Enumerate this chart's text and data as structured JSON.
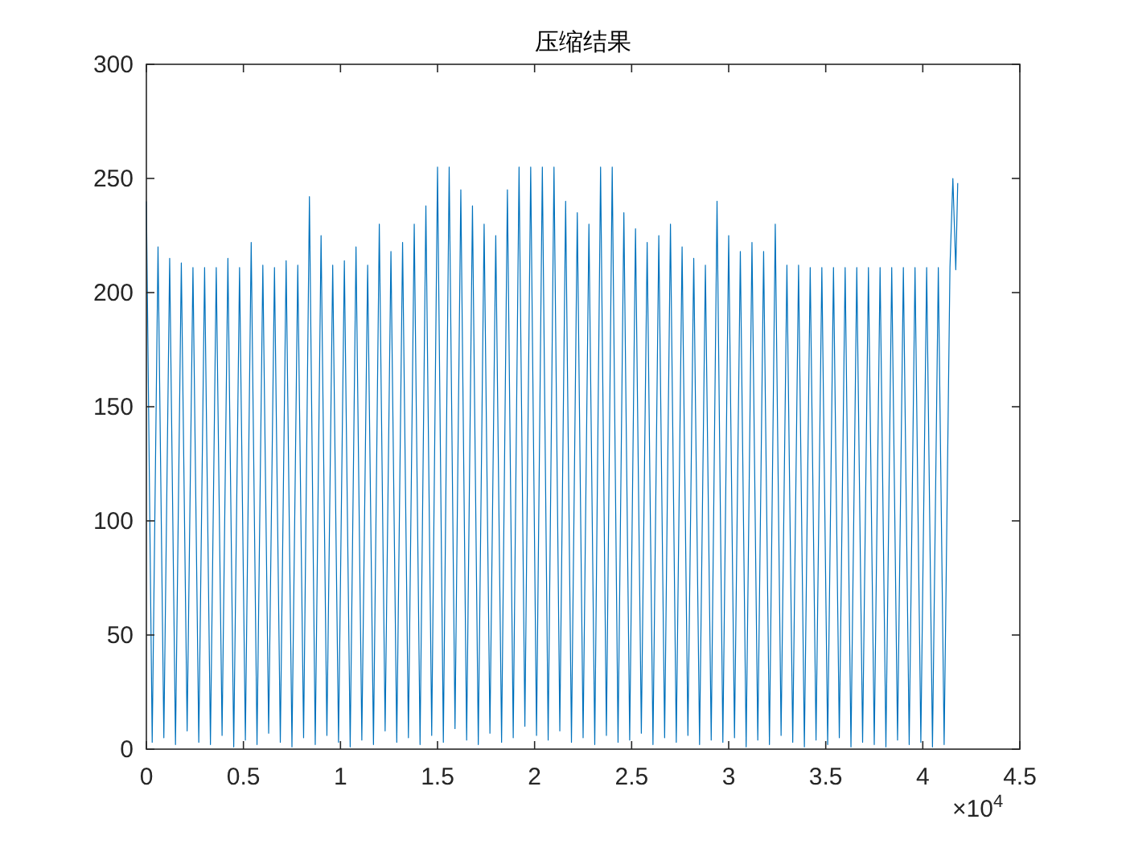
{
  "chart_data": {
    "type": "line",
    "title": "压缩结果",
    "series": [
      {
        "color": "#0072bd",
        "x": [
          0,
          0.03,
          0.06,
          0.09,
          0.12,
          0.15,
          0.18,
          0.21,
          0.24,
          0.27,
          0.3,
          0.33,
          0.36,
          0.39,
          0.42,
          0.45,
          0.48,
          0.51,
          0.54,
          0.57,
          0.6,
          0.63,
          0.66,
          0.69,
          0.72,
          0.75,
          0.78,
          0.81,
          0.84,
          0.87,
          0.9,
          0.93,
          0.96,
          0.99,
          1.02,
          1.05,
          1.08,
          1.11,
          1.14,
          1.17,
          1.2,
          1.23,
          1.26,
          1.29,
          1.32,
          1.35,
          1.38,
          1.41,
          1.44,
          1.47,
          1.5,
          1.53,
          1.56,
          1.59,
          1.62,
          1.65,
          1.68,
          1.71,
          1.74,
          1.77,
          1.8,
          1.83,
          1.86,
          1.89,
          1.92,
          1.95,
          1.98,
          2.01,
          2.04,
          2.07,
          2.1,
          2.13,
          2.16,
          2.19,
          2.22,
          2.25,
          2.28,
          2.31,
          2.34,
          2.37,
          2.4,
          2.43,
          2.46,
          2.49,
          2.52,
          2.55,
          2.58,
          2.61,
          2.64,
          2.67,
          2.7,
          2.73,
          2.76,
          2.79,
          2.82,
          2.85,
          2.88,
          2.91,
          2.94,
          2.97,
          3,
          3.03,
          3.06,
          3.09,
          3.12,
          3.15,
          3.18,
          3.21,
          3.24,
          3.27,
          3.3,
          3.33,
          3.36,
          3.39,
          3.42,
          3.45,
          3.48,
          3.51,
          3.54,
          3.57,
          3.6,
          3.63,
          3.66,
          3.69,
          3.72,
          3.75,
          3.78,
          3.81,
          3.84,
          3.87,
          3.9,
          3.93,
          3.96,
          3.99,
          4.02,
          4.05,
          4.08,
          4.11,
          4.14,
          4.155,
          4.17,
          4.18
        ],
        "values": [
          240,
          3,
          220,
          5,
          215,
          2,
          213,
          8,
          211,
          3,
          211,
          2,
          211,
          6,
          215,
          1,
          211,
          4,
          222,
          2,
          212,
          7,
          211,
          3,
          214,
          1,
          212,
          5,
          242,
          2,
          225,
          6,
          212,
          3,
          214,
          1,
          220,
          4,
          212,
          2,
          230,
          8,
          218,
          3,
          222,
          5,
          230,
          2,
          238,
          6,
          255,
          3,
          255,
          9,
          245,
          4,
          238,
          2,
          230,
          7,
          225,
          3,
          245,
          5,
          255,
          10,
          255,
          6,
          255,
          4,
          255,
          8,
          240,
          3,
          235,
          5,
          230,
          2,
          255,
          6,
          255,
          3,
          235,
          4,
          228,
          7,
          222,
          2,
          225,
          5,
          230,
          3,
          220,
          6,
          215,
          2,
          212,
          4,
          240,
          3,
          225,
          5,
          218,
          1,
          222,
          4,
          218,
          2,
          230,
          6,
          212,
          3,
          212,
          1,
          211,
          4,
          211,
          2,
          211,
          5,
          211,
          1,
          211,
          3,
          211,
          2,
          211,
          1,
          211,
          4,
          211,
          2,
          211,
          3,
          211,
          1,
          211,
          2,
          211,
          250,
          210,
          248
        ]
      }
    ],
    "xlim": [
      0,
      4.5
    ],
    "ylim": [
      0,
      300
    ],
    "xticks": [
      0,
      0.5,
      1,
      1.5,
      2,
      2.5,
      3,
      3.5,
      4,
      4.5
    ],
    "yticks": [
      0,
      50,
      100,
      150,
      200,
      250,
      300
    ],
    "annotations": [
      "×10$^{4}$"
    ]
  }
}
